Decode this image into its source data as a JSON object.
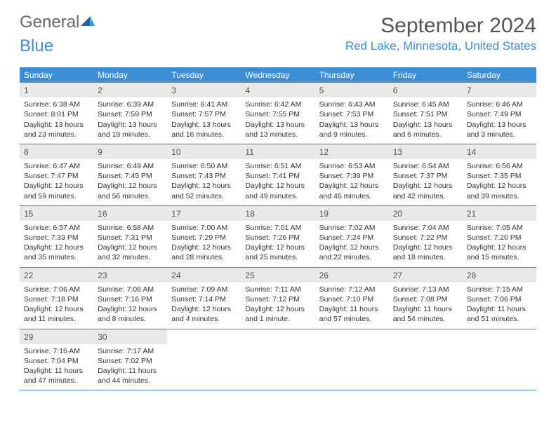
{
  "logo": {
    "part1": "General",
    "part2": "Blue"
  },
  "title": "September 2024",
  "location": "Red Lake, Minnesota, United States",
  "weekdays": [
    "Sunday",
    "Monday",
    "Tuesday",
    "Wednesday",
    "Thursday",
    "Friday",
    "Saturday"
  ],
  "colors": {
    "accent": "#3b8dd4",
    "dayHeader": "#e9e9e9",
    "text": "#333333",
    "titleText": "#555555"
  },
  "weeks": [
    [
      {
        "n": "1",
        "sunrise": "Sunrise: 6:38 AM",
        "sunset": "Sunset: 8:01 PM",
        "daylight": "Daylight: 13 hours and 23 minutes."
      },
      {
        "n": "2",
        "sunrise": "Sunrise: 6:39 AM",
        "sunset": "Sunset: 7:59 PM",
        "daylight": "Daylight: 13 hours and 19 minutes."
      },
      {
        "n": "3",
        "sunrise": "Sunrise: 6:41 AM",
        "sunset": "Sunset: 7:57 PM",
        "daylight": "Daylight: 13 hours and 16 minutes."
      },
      {
        "n": "4",
        "sunrise": "Sunrise: 6:42 AM",
        "sunset": "Sunset: 7:55 PM",
        "daylight": "Daylight: 13 hours and 13 minutes."
      },
      {
        "n": "5",
        "sunrise": "Sunrise: 6:43 AM",
        "sunset": "Sunset: 7:53 PM",
        "daylight": "Daylight: 13 hours and 9 minutes."
      },
      {
        "n": "6",
        "sunrise": "Sunrise: 6:45 AM",
        "sunset": "Sunset: 7:51 PM",
        "daylight": "Daylight: 13 hours and 6 minutes."
      },
      {
        "n": "7",
        "sunrise": "Sunrise: 6:46 AM",
        "sunset": "Sunset: 7:49 PM",
        "daylight": "Daylight: 13 hours and 3 minutes."
      }
    ],
    [
      {
        "n": "8",
        "sunrise": "Sunrise: 6:47 AM",
        "sunset": "Sunset: 7:47 PM",
        "daylight": "Daylight: 12 hours and 59 minutes."
      },
      {
        "n": "9",
        "sunrise": "Sunrise: 6:49 AM",
        "sunset": "Sunset: 7:45 PM",
        "daylight": "Daylight: 12 hours and 56 minutes."
      },
      {
        "n": "10",
        "sunrise": "Sunrise: 6:50 AM",
        "sunset": "Sunset: 7:43 PM",
        "daylight": "Daylight: 12 hours and 52 minutes."
      },
      {
        "n": "11",
        "sunrise": "Sunrise: 6:51 AM",
        "sunset": "Sunset: 7:41 PM",
        "daylight": "Daylight: 12 hours and 49 minutes."
      },
      {
        "n": "12",
        "sunrise": "Sunrise: 6:53 AM",
        "sunset": "Sunset: 7:39 PM",
        "daylight": "Daylight: 12 hours and 46 minutes."
      },
      {
        "n": "13",
        "sunrise": "Sunrise: 6:54 AM",
        "sunset": "Sunset: 7:37 PM",
        "daylight": "Daylight: 12 hours and 42 minutes."
      },
      {
        "n": "14",
        "sunrise": "Sunrise: 6:56 AM",
        "sunset": "Sunset: 7:35 PM",
        "daylight": "Daylight: 12 hours and 39 minutes."
      }
    ],
    [
      {
        "n": "15",
        "sunrise": "Sunrise: 6:57 AM",
        "sunset": "Sunset: 7:33 PM",
        "daylight": "Daylight: 12 hours and 35 minutes."
      },
      {
        "n": "16",
        "sunrise": "Sunrise: 6:58 AM",
        "sunset": "Sunset: 7:31 PM",
        "daylight": "Daylight: 12 hours and 32 minutes."
      },
      {
        "n": "17",
        "sunrise": "Sunrise: 7:00 AM",
        "sunset": "Sunset: 7:29 PM",
        "daylight": "Daylight: 12 hours and 28 minutes."
      },
      {
        "n": "18",
        "sunrise": "Sunrise: 7:01 AM",
        "sunset": "Sunset: 7:26 PM",
        "daylight": "Daylight: 12 hours and 25 minutes."
      },
      {
        "n": "19",
        "sunrise": "Sunrise: 7:02 AM",
        "sunset": "Sunset: 7:24 PM",
        "daylight": "Daylight: 12 hours and 22 minutes."
      },
      {
        "n": "20",
        "sunrise": "Sunrise: 7:04 AM",
        "sunset": "Sunset: 7:22 PM",
        "daylight": "Daylight: 12 hours and 18 minutes."
      },
      {
        "n": "21",
        "sunrise": "Sunrise: 7:05 AM",
        "sunset": "Sunset: 7:20 PM",
        "daylight": "Daylight: 12 hours and 15 minutes."
      }
    ],
    [
      {
        "n": "22",
        "sunrise": "Sunrise: 7:06 AM",
        "sunset": "Sunset: 7:18 PM",
        "daylight": "Daylight: 12 hours and 11 minutes."
      },
      {
        "n": "23",
        "sunrise": "Sunrise: 7:08 AM",
        "sunset": "Sunset: 7:16 PM",
        "daylight": "Daylight: 12 hours and 8 minutes."
      },
      {
        "n": "24",
        "sunrise": "Sunrise: 7:09 AM",
        "sunset": "Sunset: 7:14 PM",
        "daylight": "Daylight: 12 hours and 4 minutes."
      },
      {
        "n": "25",
        "sunrise": "Sunrise: 7:11 AM",
        "sunset": "Sunset: 7:12 PM",
        "daylight": "Daylight: 12 hours and 1 minute."
      },
      {
        "n": "26",
        "sunrise": "Sunrise: 7:12 AM",
        "sunset": "Sunset: 7:10 PM",
        "daylight": "Daylight: 11 hours and 57 minutes."
      },
      {
        "n": "27",
        "sunrise": "Sunrise: 7:13 AM",
        "sunset": "Sunset: 7:08 PM",
        "daylight": "Daylight: 11 hours and 54 minutes."
      },
      {
        "n": "28",
        "sunrise": "Sunrise: 7:15 AM",
        "sunset": "Sunset: 7:06 PM",
        "daylight": "Daylight: 11 hours and 51 minutes."
      }
    ],
    [
      {
        "n": "29",
        "sunrise": "Sunrise: 7:16 AM",
        "sunset": "Sunset: 7:04 PM",
        "daylight": "Daylight: 11 hours and 47 minutes."
      },
      {
        "n": "30",
        "sunrise": "Sunrise: 7:17 AM",
        "sunset": "Sunset: 7:02 PM",
        "daylight": "Daylight: 11 hours and 44 minutes."
      },
      {
        "empty": true
      },
      {
        "empty": true
      },
      {
        "empty": true
      },
      {
        "empty": true
      },
      {
        "empty": true
      }
    ]
  ]
}
